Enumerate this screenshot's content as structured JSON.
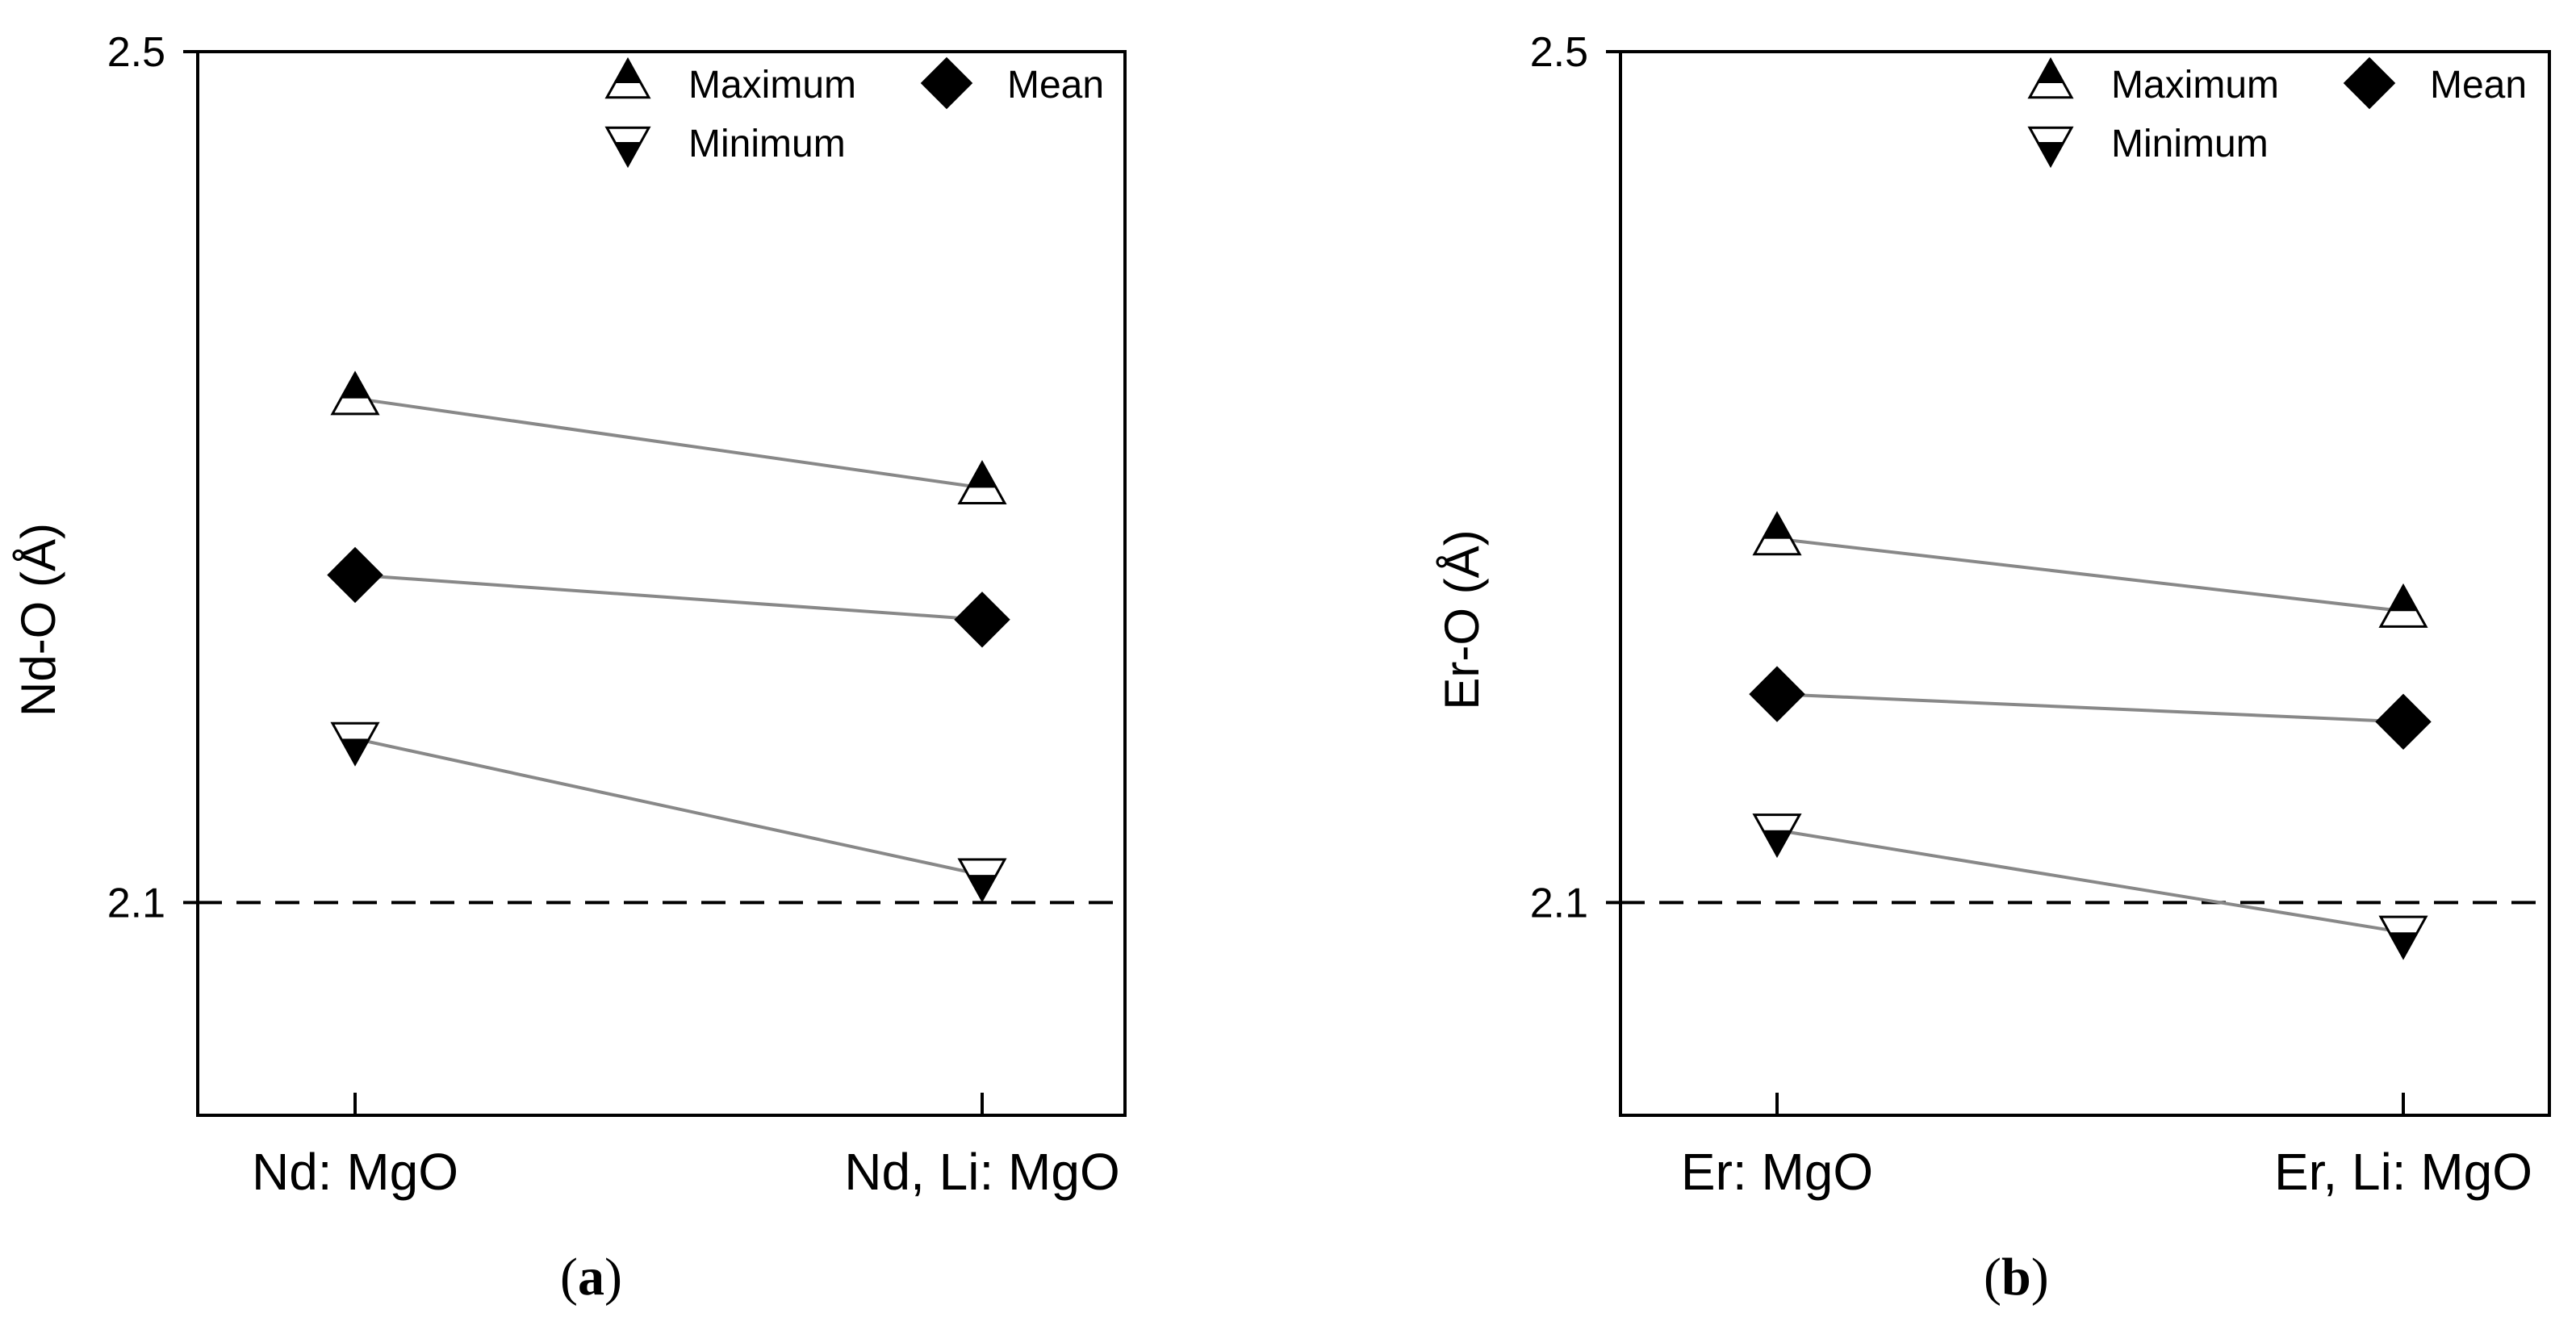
{
  "chart_data": [
    {
      "type": "line",
      "panel_label": "a",
      "ylabel": "Nd-O (Å)",
      "ylim": [
        2.0,
        2.5
      ],
      "y_ticks": [
        "2.5",
        "2.1"
      ],
      "reference_line": 2.1,
      "categories": [
        "Nd: MgO",
        "Nd, Li: MgO"
      ],
      "series": [
        {
          "name": "Maximum",
          "marker": "triangle-up",
          "values": [
            2.337,
            2.295
          ]
        },
        {
          "name": "Mean",
          "marker": "diamond",
          "values": [
            2.254,
            2.233
          ]
        },
        {
          "name": "Minimum",
          "marker": "triangle-down",
          "values": [
            2.177,
            2.113
          ]
        }
      ]
    },
    {
      "type": "line",
      "panel_label": "b",
      "ylabel": "Er-O (Å)",
      "ylim": [
        2.0,
        2.5
      ],
      "y_ticks": [
        "2.5",
        "2.1"
      ],
      "reference_line": 2.1,
      "categories": [
        "Er: MgO",
        "Er, Li: MgO"
      ],
      "series": [
        {
          "name": "Maximum",
          "marker": "triangle-up",
          "values": [
            2.271,
            2.237
          ]
        },
        {
          "name": "Mean",
          "marker": "diamond",
          "values": [
            2.198,
            2.185
          ]
        },
        {
          "name": "Minimum",
          "marker": "triangle-down",
          "values": [
            2.134,
            2.086
          ]
        }
      ]
    }
  ],
  "legend_order": [
    "Maximum",
    "Mean",
    "Minimum"
  ]
}
